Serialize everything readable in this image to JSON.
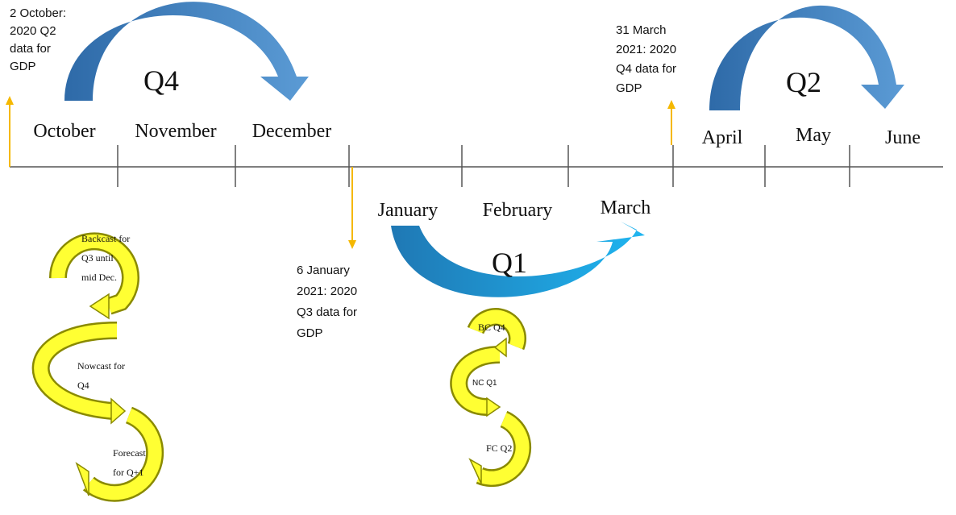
{
  "timeline": {
    "months": [
      "October",
      "November",
      "December",
      "January",
      "February",
      "March",
      "April",
      "May",
      "June"
    ]
  },
  "quarters": [
    "Q4",
    "Q1",
    "Q2"
  ],
  "releases": [
    {
      "lines": [
        "2 October:",
        "2020 Q2",
        "data for",
        "GDP"
      ]
    },
    {
      "lines": [
        "6 January",
        "2021: 2020",
        "Q3 data for",
        "GDP"
      ]
    },
    {
      "lines": [
        "31 March",
        "2021: 2020",
        "Q4 data for",
        "GDP"
      ]
    }
  ],
  "cycles": [
    {
      "steps": [
        {
          "lines": [
            "Backcast for",
            "Q3 until",
            "mid Dec."
          ]
        },
        {
          "lines": [
            "Nowcast for",
            "Q4"
          ]
        },
        {
          "lines": [
            "Forecast",
            "for Q+1"
          ]
        }
      ]
    },
    {
      "steps": [
        {
          "lines": [
            "BC Q4"
          ]
        },
        {
          "lines": [
            "NC Q1"
          ]
        },
        {
          "lines": [
            "FC Q2"
          ]
        }
      ]
    }
  ]
}
